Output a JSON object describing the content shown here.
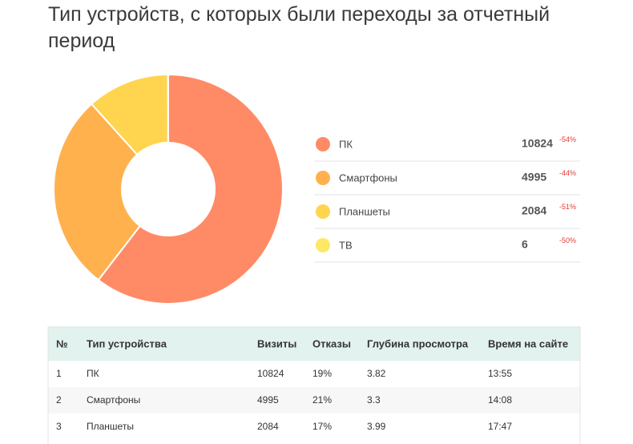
{
  "title": "Тип устройств, с которых были переходы за отчетный период",
  "chart_data": {
    "type": "pie",
    "categories": [
      "ПК",
      "Смартфоны",
      "Планшеты",
      "ТВ"
    ],
    "values": [
      10824,
      4995,
      2084,
      6
    ],
    "colors": [
      "#ff8b66",
      "#ffb14e",
      "#ffd54f",
      "#ffe866"
    ],
    "changes": [
      {
        "value": -54,
        "label": "-54%"
      },
      {
        "value": -44,
        "label": "-44%"
      },
      {
        "value": -51,
        "label": "-51%"
      },
      {
        "value": -50,
        "label": "-50%"
      }
    ]
  },
  "table": {
    "header": [
      "№",
      "Тип устройства",
      "Визиты",
      "Отказы",
      "Глубина просмотра",
      "Время на сайте"
    ],
    "rows": [
      [
        "1",
        "ПК",
        "10824",
        "19%",
        "3.82",
        "13:55"
      ],
      [
        "2",
        "Смартфоны",
        "4995",
        "21%",
        "3.3",
        "14:08"
      ],
      [
        "3",
        "Планшеты",
        "2084",
        "17%",
        "3.99",
        "17:47"
      ]
    ]
  }
}
